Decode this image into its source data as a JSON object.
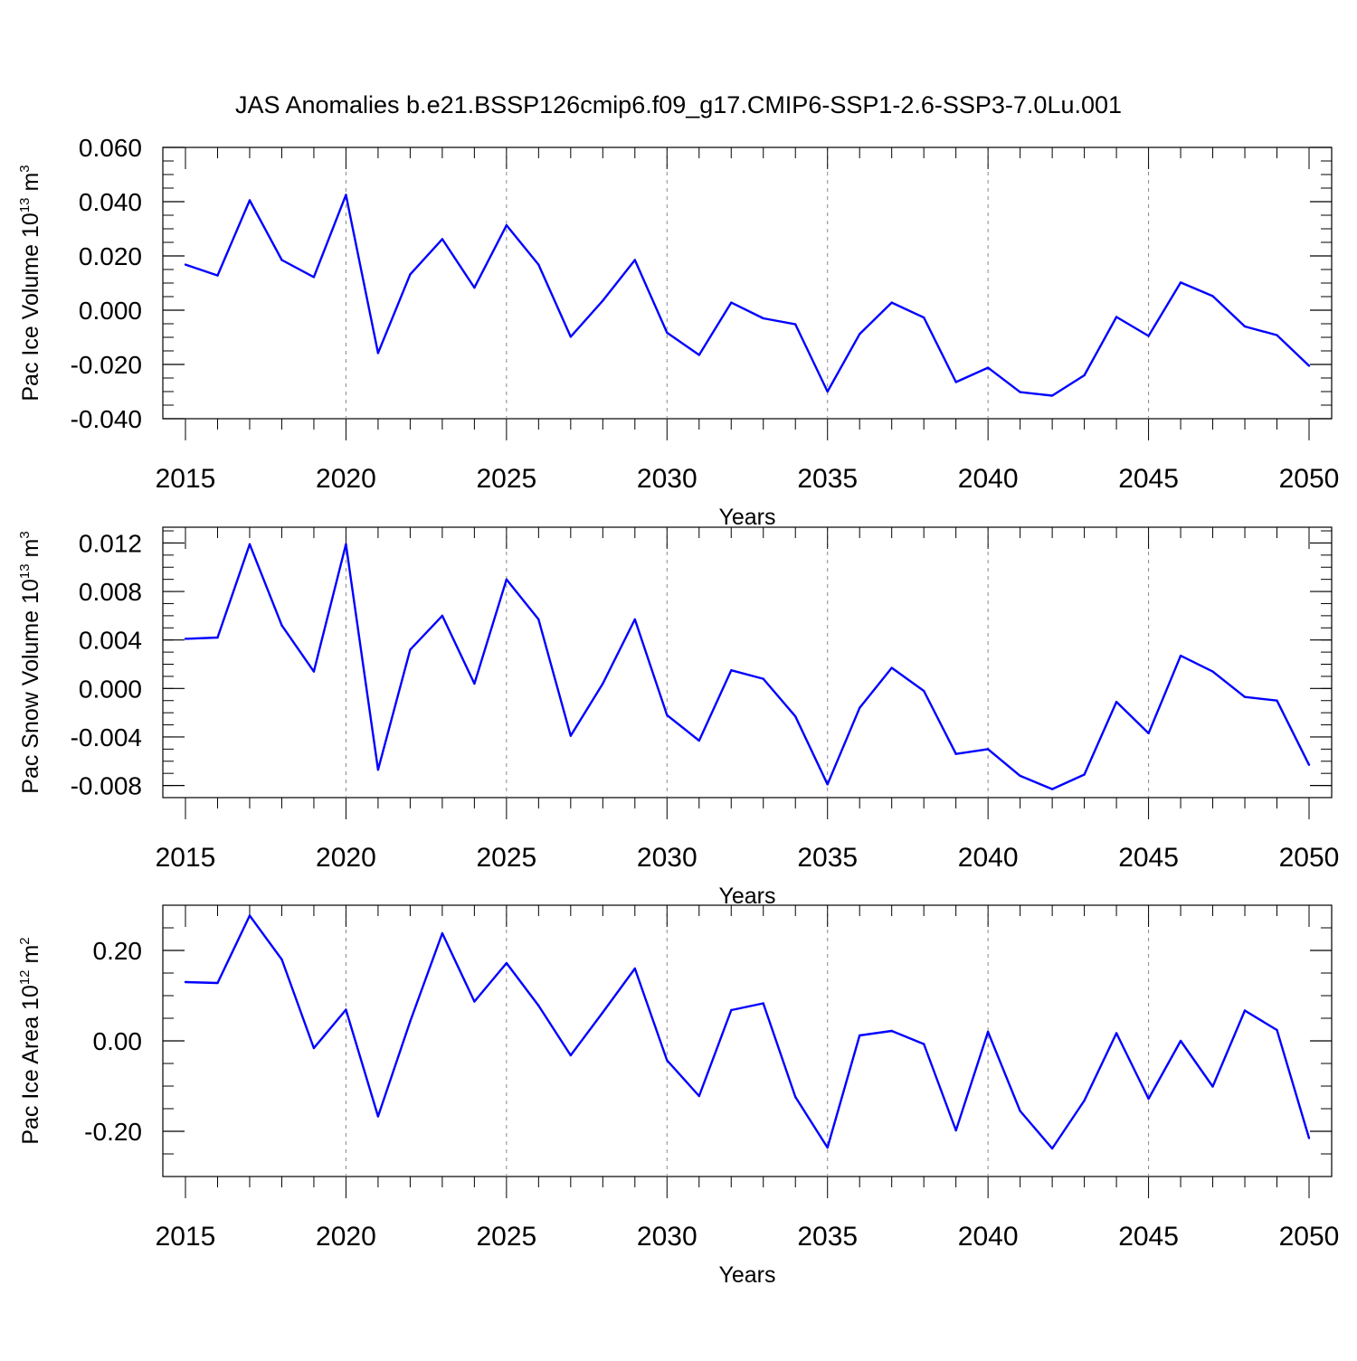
{
  "title": "JAS Anomalies b.e21.BSSP126cmip6.f09_g17.CMIP6-SSP1-2.6-SSP3-7.0Lu.001",
  "colors": {
    "line": "#0000ff",
    "axis": "#000000",
    "grid": "#888888"
  },
  "chart_data": [
    {
      "type": "line",
      "ylabel": {
        "text": "Pac Ice Volume 10",
        "sup": "13",
        "unit": " m",
        "unit_sup": "3"
      },
      "xlabel": "Years",
      "xlim": [
        2015,
        2050
      ],
      "ylim": [
        -0.04,
        0.06
      ],
      "x_ticks": [
        "2015",
        "2020",
        "2025",
        "2030",
        "2035",
        "2040",
        "2045",
        "2050"
      ],
      "y_ticks": [
        {
          "value": 0.06,
          "label": "0.060"
        },
        {
          "value": 0.04,
          "label": "0.040"
        },
        {
          "value": 0.02,
          "label": "0.020"
        },
        {
          "value": 0.0,
          "label": "0.000"
        },
        {
          "value": -0.02,
          "label": "-0.020"
        },
        {
          "value": -0.04,
          "label": "-0.040"
        }
      ],
      "y_minor_step": 0.005,
      "grid": "vertical dashed at major x ticks",
      "x": [
        2015,
        2016,
        2017,
        2018,
        2019,
        2020,
        2021,
        2022,
        2023,
        2024,
        2025,
        2026,
        2027,
        2028,
        2029,
        2030,
        2031,
        2032,
        2033,
        2034,
        2035,
        2036,
        2037,
        2038,
        2039,
        2040,
        2041,
        2042,
        2043,
        2044,
        2045,
        2046,
        2047,
        2048,
        2049,
        2050
      ],
      "y": [
        0.0168,
        0.0128,
        0.0405,
        0.0185,
        0.0122,
        0.0425,
        -0.0158,
        0.0132,
        0.0262,
        0.0083,
        0.0313,
        0.0168,
        -0.0098,
        0.0035,
        0.0185,
        -0.0083,
        -0.0165,
        0.0028,
        -0.003,
        -0.0052,
        -0.03,
        -0.0088,
        0.0028,
        -0.0027,
        -0.0265,
        -0.0212,
        -0.0302,
        -0.0315,
        -0.024,
        -0.0025,
        -0.0095,
        0.0102,
        0.0052,
        -0.006,
        -0.0092,
        -0.0205
      ]
    },
    {
      "type": "line",
      "ylabel": {
        "text": "Pac Snow Volume 10",
        "sup": "13",
        "unit": " m",
        "unit_sup": "3"
      },
      "xlabel": "Years",
      "xlim": [
        2015,
        2050
      ],
      "ylim": [
        -0.009,
        0.0133
      ],
      "x_ticks": [
        "2015",
        "2020",
        "2025",
        "2030",
        "2035",
        "2040",
        "2045",
        "2050"
      ],
      "y_ticks": [
        {
          "value": 0.012,
          "label": "0.012"
        },
        {
          "value": 0.008,
          "label": "0.008"
        },
        {
          "value": 0.004,
          "label": "0.004"
        },
        {
          "value": 0.0,
          "label": "0.000"
        },
        {
          "value": -0.004,
          "label": "-0.004"
        },
        {
          "value": -0.008,
          "label": "-0.008"
        }
      ],
      "y_minor_step": 0.001,
      "grid": "vertical dashed at major x ticks",
      "x": [
        2015,
        2016,
        2017,
        2018,
        2019,
        2020,
        2021,
        2022,
        2023,
        2024,
        2025,
        2026,
        2027,
        2028,
        2029,
        2030,
        2031,
        2032,
        2033,
        2034,
        2035,
        2036,
        2037,
        2038,
        2039,
        2040,
        2041,
        2042,
        2043,
        2044,
        2045,
        2046,
        2047,
        2048,
        2049,
        2050
      ],
      "y": [
        0.0041,
        0.0042,
        0.0119,
        0.0052,
        0.0014,
        0.0119,
        -0.0067,
        0.0032,
        0.006,
        0.0004,
        0.009,
        0.0057,
        -0.0039,
        0.0004,
        0.0057,
        -0.0022,
        -0.0043,
        0.0015,
        0.0008,
        -0.0023,
        -0.0079,
        -0.0016,
        0.0017,
        -0.0002,
        -0.0054,
        -0.005,
        -0.0072,
        -0.0083,
        -0.0071,
        -0.0011,
        -0.0037,
        0.0027,
        0.0014,
        -0.0007,
        -0.001,
        -0.0063
      ]
    },
    {
      "type": "line",
      "ylabel": {
        "text": "Pac Ice Area 10",
        "sup": "12",
        "unit": " m",
        "unit_sup": "2"
      },
      "xlabel": "Years",
      "xlim": [
        2015,
        2050
      ],
      "ylim": [
        -0.3,
        0.3
      ],
      "x_ticks": [
        "2015",
        "2020",
        "2025",
        "2030",
        "2035",
        "2040",
        "2045",
        "2050"
      ],
      "y_ticks": [
        {
          "value": 0.2,
          "label": "0.20"
        },
        {
          "value": 0.0,
          "label": "0.00"
        },
        {
          "value": -0.2,
          "label": "-0.20"
        }
      ],
      "y_minor_step": 0.05,
      "grid": "vertical dashed at major x ticks",
      "x": [
        2015,
        2016,
        2017,
        2018,
        2019,
        2020,
        2021,
        2022,
        2023,
        2024,
        2025,
        2026,
        2027,
        2028,
        2029,
        2030,
        2031,
        2032,
        2033,
        2034,
        2035,
        2036,
        2037,
        2038,
        2039,
        2040,
        2041,
        2042,
        2043,
        2044,
        2045,
        2046,
        2047,
        2048,
        2049,
        2050
      ],
      "y": [
        0.13,
        0.128,
        0.277,
        0.18,
        -0.016,
        0.069,
        -0.167,
        0.043,
        0.238,
        0.087,
        0.172,
        0.078,
        -0.032,
        0.063,
        0.16,
        -0.043,
        -0.122,
        0.068,
        0.083,
        -0.124,
        -0.236,
        0.012,
        0.022,
        -0.007,
        -0.198,
        0.02,
        -0.155,
        -0.238,
        -0.132,
        0.017,
        -0.128,
        0.0,
        -0.101,
        0.067,
        0.024,
        -0.215
      ]
    }
  ]
}
